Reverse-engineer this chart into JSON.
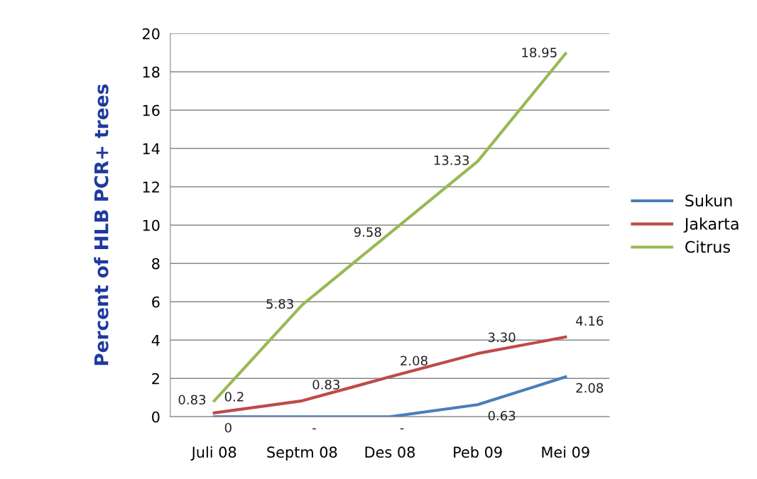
{
  "chart_data": {
    "type": "line",
    "ylabel": "Percent of HLB PCR+ trees",
    "categories": [
      "Juli 08",
      "Septm 08",
      "Des 08",
      "Peb 09",
      "Mei 09"
    ],
    "series": [
      {
        "name": "Sukun",
        "color": "#4a7ebb",
        "values": [
          0,
          0,
          0,
          0.63,
          2.08
        ],
        "value_labels": [
          "0",
          "-",
          "-",
          "0.63",
          "2.08"
        ]
      },
      {
        "name": "Jakarta",
        "color": "#be4b48",
        "values": [
          0.2,
          0.83,
          2.08,
          3.3,
          4.16
        ],
        "value_labels": [
          "0.2",
          "0.83",
          "2.08",
          "3.30",
          "4.16"
        ]
      },
      {
        "name": "Citrus",
        "color": "#98b954",
        "values": [
          0.83,
          5.83,
          9.58,
          13.33,
          18.95
        ],
        "value_labels": [
          "0.83",
          "5.83",
          "9.58",
          "13.33",
          "18.95"
        ]
      }
    ],
    "ylim": [
      0,
      20
    ],
    "yticks": [
      0,
      2,
      4,
      6,
      8,
      10,
      12,
      14,
      16,
      18,
      20
    ],
    "grid": "y",
    "legend": "right",
    "marker": "none",
    "line_style": "solid"
  }
}
